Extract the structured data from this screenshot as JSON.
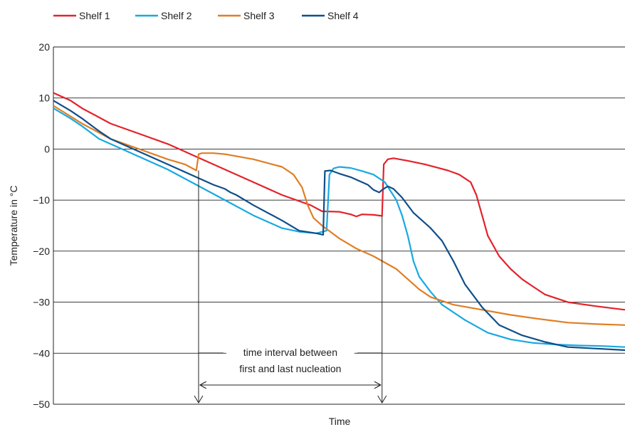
{
  "chart_data": {
    "type": "line",
    "xlabel": "Time",
    "ylabel": "Temperature in °C",
    "ylim": [
      -50,
      20
    ],
    "yticks": [
      20,
      10,
      0,
      -10,
      -20,
      -30,
      -40,
      -50
    ],
    "ytick_labels": [
      "20",
      "10",
      "0",
      "−10",
      "−20",
      "−30",
      "−40",
      "−50"
    ],
    "xlim": [
      0,
      100
    ],
    "x_tick_labels_shown": false,
    "grid": "horizontal",
    "legend_position": "top-left",
    "series": [
      {
        "name": "Shelf 1",
        "color": "#e3232b",
        "points": [
          [
            0,
            11
          ],
          [
            3,
            9.5
          ],
          [
            5,
            8
          ],
          [
            10,
            5
          ],
          [
            15,
            3
          ],
          [
            20,
            1
          ],
          [
            22,
            0
          ],
          [
            25,
            -1.5
          ],
          [
            30,
            -4
          ],
          [
            35,
            -6.5
          ],
          [
            40,
            -9
          ],
          [
            45,
            -11
          ],
          [
            47,
            -12.2
          ],
          [
            50,
            -12.3
          ],
          [
            52,
            -12.8
          ],
          [
            53,
            -13.2
          ],
          [
            54,
            -12.8
          ],
          [
            56,
            -12.9
          ],
          [
            57.5,
            -13.1
          ],
          [
            57.8,
            -3
          ],
          [
            58.5,
            -2
          ],
          [
            59.5,
            -1.8
          ],
          [
            62,
            -2.3
          ],
          [
            65,
            -3
          ],
          [
            67,
            -3.6
          ],
          [
            69,
            -4.2
          ],
          [
            71,
            -5
          ],
          [
            73,
            -6.5
          ],
          [
            74,
            -9
          ],
          [
            75,
            -13
          ],
          [
            76,
            -17
          ],
          [
            78,
            -21
          ],
          [
            80,
            -23.5
          ],
          [
            82,
            -25.5
          ],
          [
            84,
            -27
          ],
          [
            86,
            -28.5
          ],
          [
            90,
            -30
          ],
          [
            95,
            -30.8
          ],
          [
            100,
            -31.5
          ]
        ]
      },
      {
        "name": "Shelf 2",
        "color": "#17a9e1",
        "points": [
          [
            0,
            8
          ],
          [
            3,
            6
          ],
          [
            5,
            4.5
          ],
          [
            8,
            2
          ],
          [
            10,
            1
          ],
          [
            13,
            -0.5
          ],
          [
            16,
            -2
          ],
          [
            20,
            -4
          ],
          [
            25,
            -7
          ],
          [
            30,
            -10
          ],
          [
            35,
            -13
          ],
          [
            40,
            -15.5
          ],
          [
            43,
            -16.2
          ],
          [
            46,
            -16.5
          ],
          [
            47.8,
            -16
          ],
          [
            48.3,
            -5
          ],
          [
            49,
            -3.8
          ],
          [
            50,
            -3.5
          ],
          [
            52,
            -3.7
          ],
          [
            54,
            -4.3
          ],
          [
            56,
            -5
          ],
          [
            58,
            -6.5
          ],
          [
            60,
            -10
          ],
          [
            61,
            -13
          ],
          [
            62,
            -17
          ],
          [
            63,
            -22
          ],
          [
            64,
            -25
          ],
          [
            66,
            -28
          ],
          [
            68,
            -30.5
          ],
          [
            72,
            -33.5
          ],
          [
            76,
            -36
          ],
          [
            80,
            -37.3
          ],
          [
            84,
            -38
          ],
          [
            88,
            -38.3
          ],
          [
            92,
            -38.5
          ],
          [
            96,
            -38.6
          ],
          [
            100,
            -38.8
          ]
        ]
      },
      {
        "name": "Shelf 3",
        "color": "#e07e25",
        "points": [
          [
            0,
            8.5
          ],
          [
            5,
            5
          ],
          [
            10,
            2
          ],
          [
            15,
            0
          ],
          [
            20,
            -2
          ],
          [
            23,
            -3
          ],
          [
            25,
            -4.2
          ],
          [
            25.4,
            -1
          ],
          [
            26,
            -0.8
          ],
          [
            28,
            -0.8
          ],
          [
            30,
            -1
          ],
          [
            35,
            -2
          ],
          [
            40,
            -3.5
          ],
          [
            42,
            -5
          ],
          [
            43.5,
            -7.5
          ],
          [
            44.5,
            -11
          ],
          [
            45.5,
            -13.5
          ],
          [
            47,
            -15
          ],
          [
            50,
            -17.5
          ],
          [
            53,
            -19.5
          ],
          [
            56,
            -21
          ],
          [
            60,
            -23.5
          ],
          [
            62,
            -25.5
          ],
          [
            64,
            -27.5
          ],
          [
            66,
            -29
          ],
          [
            70,
            -30.5
          ],
          [
            75,
            -31.5
          ],
          [
            80,
            -32.5
          ],
          [
            85,
            -33.3
          ],
          [
            90,
            -34
          ],
          [
            95,
            -34.3
          ],
          [
            100,
            -34.5
          ]
        ]
      },
      {
        "name": "Shelf 4",
        "color": "#0f4e8a",
        "points": [
          [
            0,
            9.5
          ],
          [
            3,
            7.5
          ],
          [
            5,
            6
          ],
          [
            8,
            3.5
          ],
          [
            10,
            2
          ],
          [
            15,
            -0.5
          ],
          [
            20,
            -3
          ],
          [
            25,
            -5.5
          ],
          [
            28,
            -7
          ],
          [
            30,
            -7.8
          ],
          [
            31,
            -8.5
          ],
          [
            32,
            -9
          ],
          [
            35,
            -11
          ],
          [
            40,
            -14
          ],
          [
            43,
            -16
          ],
          [
            46,
            -16.5
          ],
          [
            47.2,
            -16.8
          ],
          [
            47.5,
            -4.3
          ],
          [
            48.5,
            -4.2
          ],
          [
            50,
            -4.8
          ],
          [
            52,
            -5.5
          ],
          [
            54,
            -6.5
          ],
          [
            55,
            -7
          ],
          [
            56,
            -8
          ],
          [
            57,
            -8.5
          ],
          [
            57.5,
            -8
          ],
          [
            58.5,
            -7.3
          ],
          [
            59.5,
            -7.8
          ],
          [
            61,
            -9.5
          ],
          [
            63,
            -12.5
          ],
          [
            66,
            -15.5
          ],
          [
            68,
            -18
          ],
          [
            70,
            -22
          ],
          [
            72,
            -26.5
          ],
          [
            75,
            -31
          ],
          [
            78,
            -34.5
          ],
          [
            82,
            -36.5
          ],
          [
            86,
            -37.8
          ],
          [
            90,
            -38.8
          ],
          [
            95,
            -39.1
          ],
          [
            100,
            -39.4
          ]
        ]
      }
    ],
    "annotation": {
      "line1": "time interval between",
      "line2": "first and last nucleation",
      "x_start": 25.4,
      "x_end": 57.5
    }
  }
}
